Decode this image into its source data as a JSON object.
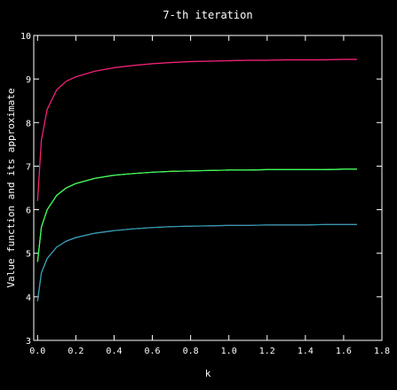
{
  "chart_data": {
    "type": "line",
    "title": "7-th iteration",
    "xlabel": "k",
    "ylabel": "Value function and its approximate",
    "xlim": [
      -0.02,
      1.8
    ],
    "ylim": [
      3,
      10
    ],
    "xticks": [
      "0.0",
      "0.2",
      "0.4",
      "0.6",
      "0.8",
      "1.0",
      "1.2",
      "1.4",
      "1.6",
      "1.8"
    ],
    "yticks": [
      "3",
      "4",
      "5",
      "6",
      "7",
      "8",
      "9",
      "10"
    ],
    "grid": false,
    "legend": "none",
    "colors": {
      "background": "#000000",
      "axes": "#ffffff",
      "top_value": "#2020ff",
      "top_approx": "#ff2060",
      "mid_value": "#ffff60",
      "mid_approx": "#30ff60",
      "low_value": "#ff40ff",
      "low_approx": "#20a8a8"
    },
    "x": [
      0.0,
      0.02,
      0.05,
      0.1,
      0.15,
      0.2,
      0.3,
      0.4,
      0.5,
      0.6,
      0.7,
      0.8,
      0.9,
      1.0,
      1.1,
      1.2,
      1.3,
      1.4,
      1.5,
      1.6,
      1.67
    ],
    "series": [
      {
        "values": [
          6.2,
          7.6,
          8.3,
          8.75,
          8.95,
          9.05,
          9.18,
          9.26,
          9.31,
          9.35,
          9.38,
          9.4,
          9.41,
          9.42,
          9.43,
          9.43,
          9.44,
          9.44,
          9.44,
          9.45,
          9.45
        ],
        "color": "#2020ff"
      },
      {
        "values": [
          6.2,
          7.6,
          8.3,
          8.75,
          8.95,
          9.05,
          9.18,
          9.26,
          9.31,
          9.35,
          9.38,
          9.4,
          9.41,
          9.42,
          9.43,
          9.43,
          9.44,
          9.44,
          9.44,
          9.45,
          9.45
        ],
        "color": "#ff2060"
      },
      {
        "values": [
          4.8,
          5.6,
          6.0,
          6.33,
          6.5,
          6.6,
          6.72,
          6.79,
          6.83,
          6.86,
          6.88,
          6.89,
          6.9,
          6.91,
          6.91,
          6.92,
          6.92,
          6.92,
          6.92,
          6.93,
          6.93
        ],
        "color": "#ffff60"
      },
      {
        "values": [
          4.8,
          5.6,
          6.0,
          6.33,
          6.5,
          6.6,
          6.72,
          6.79,
          6.83,
          6.86,
          6.88,
          6.89,
          6.9,
          6.91,
          6.91,
          6.92,
          6.92,
          6.92,
          6.92,
          6.93,
          6.93
        ],
        "color": "#30ff60"
      },
      {
        "values": [
          3.9,
          4.55,
          4.88,
          5.14,
          5.28,
          5.36,
          5.46,
          5.52,
          5.56,
          5.59,
          5.61,
          5.62,
          5.63,
          5.64,
          5.64,
          5.65,
          5.65,
          5.65,
          5.66,
          5.66,
          5.66
        ],
        "color": "#ff40ff"
      },
      {
        "values": [
          3.9,
          4.55,
          4.88,
          5.14,
          5.28,
          5.36,
          5.46,
          5.52,
          5.56,
          5.59,
          5.61,
          5.62,
          5.63,
          5.64,
          5.64,
          5.65,
          5.65,
          5.65,
          5.66,
          5.66,
          5.66
        ],
        "color": "#20a8a8"
      }
    ]
  }
}
